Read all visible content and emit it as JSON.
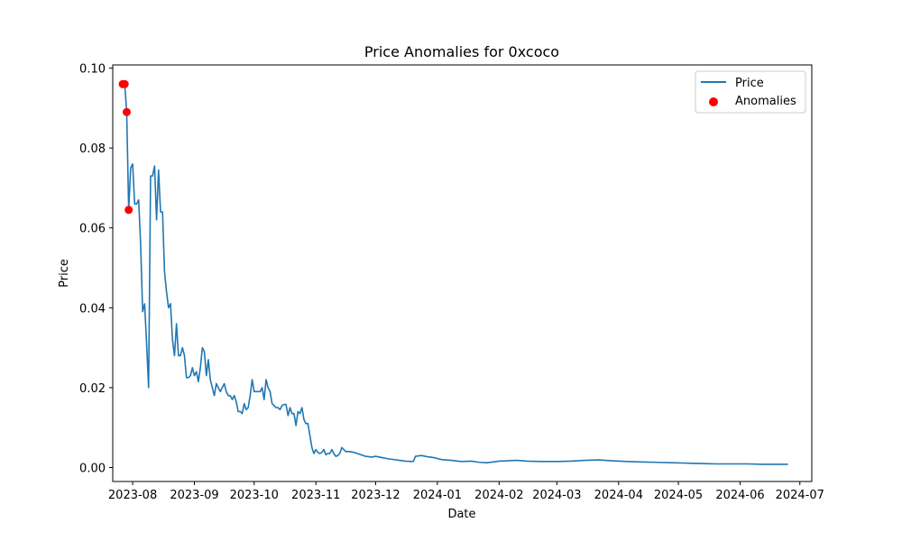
{
  "chart_data": {
    "type": "line",
    "title": "Price Anomalies for 0xcoco",
    "xlabel": "Date",
    "ylabel": "Price",
    "xlim": [
      "2023-07-22",
      "2024-07-07"
    ],
    "ylim": [
      -0.0035,
      0.1008
    ],
    "grid": false,
    "legend_position": "top-right",
    "x_ticks": [
      "2023-08",
      "2023-09",
      "2023-10",
      "2023-11",
      "2023-12",
      "2024-01",
      "2024-02",
      "2024-03",
      "2024-04",
      "2024-05",
      "2024-06",
      "2024-07"
    ],
    "y_ticks": [
      "0.00",
      "0.02",
      "0.04",
      "0.06",
      "0.08",
      "0.10"
    ],
    "series": [
      {
        "name": "Price",
        "color": "#1f77b4",
        "points": [
          [
            "2023-07-27",
            0.096
          ],
          [
            "2023-07-28",
            0.096
          ],
          [
            "2023-07-29",
            0.089
          ],
          [
            "2023-07-30",
            0.0645
          ],
          [
            "2023-07-31",
            0.075
          ],
          [
            "2023-08-01",
            0.076
          ],
          [
            "2023-08-02",
            0.066
          ],
          [
            "2023-08-03",
            0.066
          ],
          [
            "2023-08-04",
            0.067
          ],
          [
            "2023-08-05",
            0.056
          ],
          [
            "2023-08-06",
            0.039
          ],
          [
            "2023-08-07",
            0.041
          ],
          [
            "2023-08-08",
            0.031
          ],
          [
            "2023-08-09",
            0.02
          ],
          [
            "2023-08-10",
            0.073
          ],
          [
            "2023-08-11",
            0.073
          ],
          [
            "2023-08-12",
            0.0755
          ],
          [
            "2023-08-13",
            0.062
          ],
          [
            "2023-08-14",
            0.0745
          ],
          [
            "2023-08-15",
            0.064
          ],
          [
            "2023-08-16",
            0.064
          ],
          [
            "2023-08-17",
            0.049
          ],
          [
            "2023-08-18",
            0.044
          ],
          [
            "2023-08-19",
            0.04
          ],
          [
            "2023-08-20",
            0.041
          ],
          [
            "2023-08-21",
            0.032
          ],
          [
            "2023-08-22",
            0.028
          ],
          [
            "2023-08-23",
            0.036
          ],
          [
            "2023-08-24",
            0.028
          ],
          [
            "2023-08-25",
            0.028
          ],
          [
            "2023-08-26",
            0.03
          ],
          [
            "2023-08-27",
            0.028
          ],
          [
            "2023-08-28",
            0.0225
          ],
          [
            "2023-08-29",
            0.0225
          ],
          [
            "2023-08-30",
            0.023
          ],
          [
            "2023-08-31",
            0.025
          ],
          [
            "2023-09-01",
            0.023
          ],
          [
            "2023-09-02",
            0.024
          ],
          [
            "2023-09-03",
            0.0215
          ],
          [
            "2023-09-04",
            0.025
          ],
          [
            "2023-09-05",
            0.03
          ],
          [
            "2023-09-06",
            0.029
          ],
          [
            "2023-09-07",
            0.023
          ],
          [
            "2023-09-08",
            0.027
          ],
          [
            "2023-09-09",
            0.022
          ],
          [
            "2023-09-10",
            0.02
          ],
          [
            "2023-09-11",
            0.018
          ],
          [
            "2023-09-12",
            0.021
          ],
          [
            "2023-09-13",
            0.02
          ],
          [
            "2023-09-14",
            0.019
          ],
          [
            "2023-09-15",
            0.02
          ],
          [
            "2023-09-16",
            0.021
          ],
          [
            "2023-09-17",
            0.019
          ],
          [
            "2023-09-18",
            0.018
          ],
          [
            "2023-09-19",
            0.018
          ],
          [
            "2023-09-20",
            0.017
          ],
          [
            "2023-09-21",
            0.018
          ],
          [
            "2023-09-22",
            0.0165
          ],
          [
            "2023-09-23",
            0.014
          ],
          [
            "2023-09-24",
            0.014
          ],
          [
            "2023-09-25",
            0.0135
          ],
          [
            "2023-09-26",
            0.016
          ],
          [
            "2023-09-27",
            0.0145
          ],
          [
            "2023-09-28",
            0.015
          ],
          [
            "2023-09-29",
            0.018
          ],
          [
            "2023-09-30",
            0.022
          ],
          [
            "2023-10-01",
            0.019
          ],
          [
            "2023-10-02",
            0.019
          ],
          [
            "2023-10-03",
            0.019
          ],
          [
            "2023-10-04",
            0.019
          ],
          [
            "2023-10-05",
            0.02
          ],
          [
            "2023-10-06",
            0.017
          ],
          [
            "2023-10-07",
            0.022
          ],
          [
            "2023-10-08",
            0.02
          ],
          [
            "2023-10-09",
            0.019
          ],
          [
            "2023-10-10",
            0.016
          ],
          [
            "2023-10-11",
            0.0155
          ],
          [
            "2023-10-12",
            0.015
          ],
          [
            "2023-10-13",
            0.015
          ],
          [
            "2023-10-14",
            0.0145
          ],
          [
            "2023-10-15",
            0.0155
          ],
          [
            "2023-10-16",
            0.0158
          ],
          [
            "2023-10-17",
            0.0158
          ],
          [
            "2023-10-18",
            0.013
          ],
          [
            "2023-10-19",
            0.015
          ],
          [
            "2023-10-20",
            0.0135
          ],
          [
            "2023-10-21",
            0.0135
          ],
          [
            "2023-10-22",
            0.0105
          ],
          [
            "2023-10-23",
            0.014
          ],
          [
            "2023-10-24",
            0.0135
          ],
          [
            "2023-10-25",
            0.015
          ],
          [
            "2023-10-26",
            0.012
          ],
          [
            "2023-10-27",
            0.011
          ],
          [
            "2023-10-28",
            0.011
          ],
          [
            "2023-10-29",
            0.008
          ],
          [
            "2023-10-30",
            0.005
          ],
          [
            "2023-10-31",
            0.0035
          ],
          [
            "2023-11-01",
            0.0045
          ],
          [
            "2023-11-02",
            0.0038
          ],
          [
            "2023-11-03",
            0.0035
          ],
          [
            "2023-11-04",
            0.0038
          ],
          [
            "2023-11-05",
            0.0045
          ],
          [
            "2023-11-06",
            0.0032
          ],
          [
            "2023-11-07",
            0.0035
          ],
          [
            "2023-11-08",
            0.0035
          ],
          [
            "2023-11-09",
            0.0045
          ],
          [
            "2023-11-10",
            0.0035
          ],
          [
            "2023-11-11",
            0.0028
          ],
          [
            "2023-11-12",
            0.003
          ],
          [
            "2023-11-13",
            0.0035
          ],
          [
            "2023-11-14",
            0.005
          ],
          [
            "2023-11-15",
            0.0045
          ],
          [
            "2023-11-16",
            0.004
          ],
          [
            "2023-11-18",
            0.004
          ],
          [
            "2023-11-20",
            0.0038
          ],
          [
            "2023-11-23",
            0.0033
          ],
          [
            "2023-11-26",
            0.0028
          ],
          [
            "2023-11-29",
            0.0026
          ],
          [
            "2023-12-01",
            0.0028
          ],
          [
            "2023-12-04",
            0.0025
          ],
          [
            "2023-12-07",
            0.0022
          ],
          [
            "2023-12-10",
            0.002
          ],
          [
            "2023-12-13",
            0.0018
          ],
          [
            "2023-12-16",
            0.0016
          ],
          [
            "2023-12-19",
            0.0015
          ],
          [
            "2023-12-20",
            0.0016
          ],
          [
            "2023-12-21",
            0.0028
          ],
          [
            "2023-12-24",
            0.003
          ],
          [
            "2023-12-27",
            0.0027
          ],
          [
            "2023-12-30",
            0.0025
          ],
          [
            "2024-01-03",
            0.002
          ],
          [
            "2024-01-08",
            0.0018
          ],
          [
            "2024-01-13",
            0.0015
          ],
          [
            "2024-01-18",
            0.0016
          ],
          [
            "2024-01-22",
            0.0013
          ],
          [
            "2024-01-26",
            0.0012
          ],
          [
            "2024-02-01",
            0.0016
          ],
          [
            "2024-02-06",
            0.0017
          ],
          [
            "2024-02-10",
            0.0018
          ],
          [
            "2024-02-15",
            0.0016
          ],
          [
            "2024-02-22",
            0.0015
          ],
          [
            "2024-03-01",
            0.0015
          ],
          [
            "2024-03-08",
            0.0016
          ],
          [
            "2024-03-15",
            0.0018
          ],
          [
            "2024-03-22",
            0.0019
          ],
          [
            "2024-03-28",
            0.0017
          ],
          [
            "2024-04-05",
            0.0015
          ],
          [
            "2024-04-12",
            0.0014
          ],
          [
            "2024-04-20",
            0.0013
          ],
          [
            "2024-04-28",
            0.0012
          ],
          [
            "2024-05-05",
            0.0011
          ],
          [
            "2024-05-12",
            0.001
          ],
          [
            "2024-05-20",
            0.0009
          ],
          [
            "2024-05-28",
            0.0009
          ],
          [
            "2024-06-05",
            0.0009
          ],
          [
            "2024-06-12",
            0.0008
          ],
          [
            "2024-06-18",
            0.0008
          ],
          [
            "2024-06-25",
            0.0008
          ]
        ]
      },
      {
        "name": "Anomalies",
        "type": "scatter",
        "color": "#ff0000",
        "points": [
          [
            "2023-07-27",
            0.096
          ],
          [
            "2023-07-28",
            0.096
          ],
          [
            "2023-07-29",
            0.089
          ],
          [
            "2023-07-30",
            0.0645
          ]
        ]
      }
    ]
  }
}
